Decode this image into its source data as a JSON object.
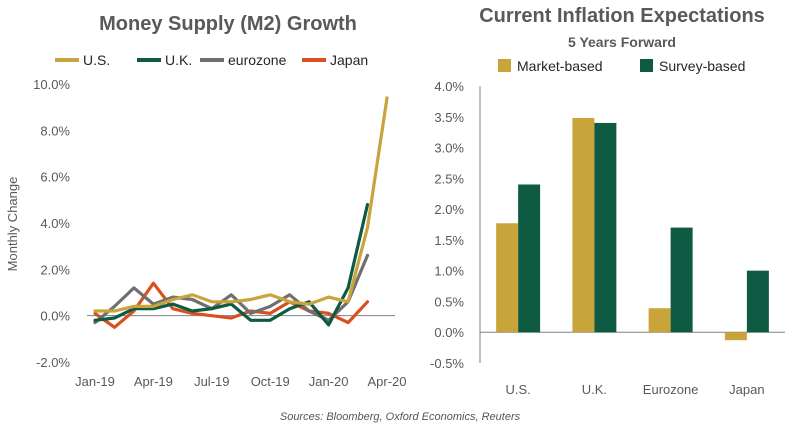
{
  "colors": {
    "gold": "#C9A43A",
    "green": "#0E5A43",
    "gray": "#6F6F6F",
    "orange": "#D9501E",
    "text": "#595959"
  },
  "source": "Sources: Bloomberg, Oxford Economics, Reuters",
  "chart_data": [
    {
      "type": "line",
      "title": "Money Supply (M2) Growth",
      "ylabel": "Monthly Change",
      "xlabel": "",
      "ylim": [
        -2.0,
        10.0
      ],
      "yticks": [
        "-2.0%",
        "0.0%",
        "2.0%",
        "4.0%",
        "6.0%",
        "8.0%",
        "10.0%"
      ],
      "x": [
        "Jan-19",
        "Feb-19",
        "Mar-19",
        "Apr-19",
        "May-19",
        "Jun-19",
        "Jul-19",
        "Aug-19",
        "Sep-19",
        "Oct-19",
        "Nov-19",
        "Dec-19",
        "Jan-20",
        "Feb-20",
        "Mar-20",
        "Apr-20"
      ],
      "xtick_labels": [
        "Jan-19",
        "Apr-19",
        "Jul-19",
        "Oct-19",
        "Jan-20",
        "Apr-20"
      ],
      "legend_position": "top",
      "series": [
        {
          "name": "U.S.",
          "color": "#C9A43A",
          "values": [
            0.2,
            0.2,
            0.4,
            0.4,
            0.7,
            0.9,
            0.6,
            0.6,
            0.7,
            0.9,
            0.6,
            0.5,
            0.8,
            0.6,
            3.8,
            9.4
          ]
        },
        {
          "name": "U.K.",
          "color": "#0E5A43",
          "values": [
            -0.2,
            -0.1,
            0.3,
            0.3,
            0.5,
            0.2,
            0.3,
            0.5,
            -0.2,
            -0.2,
            0.3,
            0.6,
            -0.4,
            1.2,
            4.8,
            null
          ]
        },
        {
          "name": "eurozone",
          "color": "#6F6F6F",
          "values": [
            -0.3,
            0.4,
            1.2,
            0.5,
            0.8,
            0.7,
            0.3,
            0.9,
            0.1,
            0.4,
            0.9,
            0.2,
            -0.2,
            0.6,
            2.6,
            null
          ]
        },
        {
          "name": "Japan",
          "color": "#D9501E",
          "values": [
            0.1,
            -0.5,
            0.2,
            1.4,
            0.3,
            0.1,
            0.0,
            -0.1,
            0.2,
            0.1,
            0.6,
            0.2,
            0.1,
            -0.3,
            0.6,
            null
          ]
        }
      ]
    },
    {
      "type": "bar",
      "title": "Current Inflation Expectations",
      "subtitle": "5 Years Forward",
      "ylim": [
        -0.5,
        4.0
      ],
      "yticks": [
        "-0.5%",
        "0.0%",
        "0.5%",
        "1.0%",
        "1.5%",
        "2.0%",
        "2.5%",
        "3.0%",
        "3.5%",
        "4.0%"
      ],
      "categories": [
        "U.S.",
        "U.K.",
        "Eurozone",
        "Japan"
      ],
      "legend_position": "top",
      "series": [
        {
          "name": "Market-based",
          "color": "#C9A43A",
          "values": [
            1.77,
            3.48,
            0.39,
            -0.13
          ]
        },
        {
          "name": "Survey-based",
          "color": "#0E5A43",
          "values": [
            2.4,
            3.4,
            1.7,
            1.0
          ]
        }
      ]
    }
  ]
}
